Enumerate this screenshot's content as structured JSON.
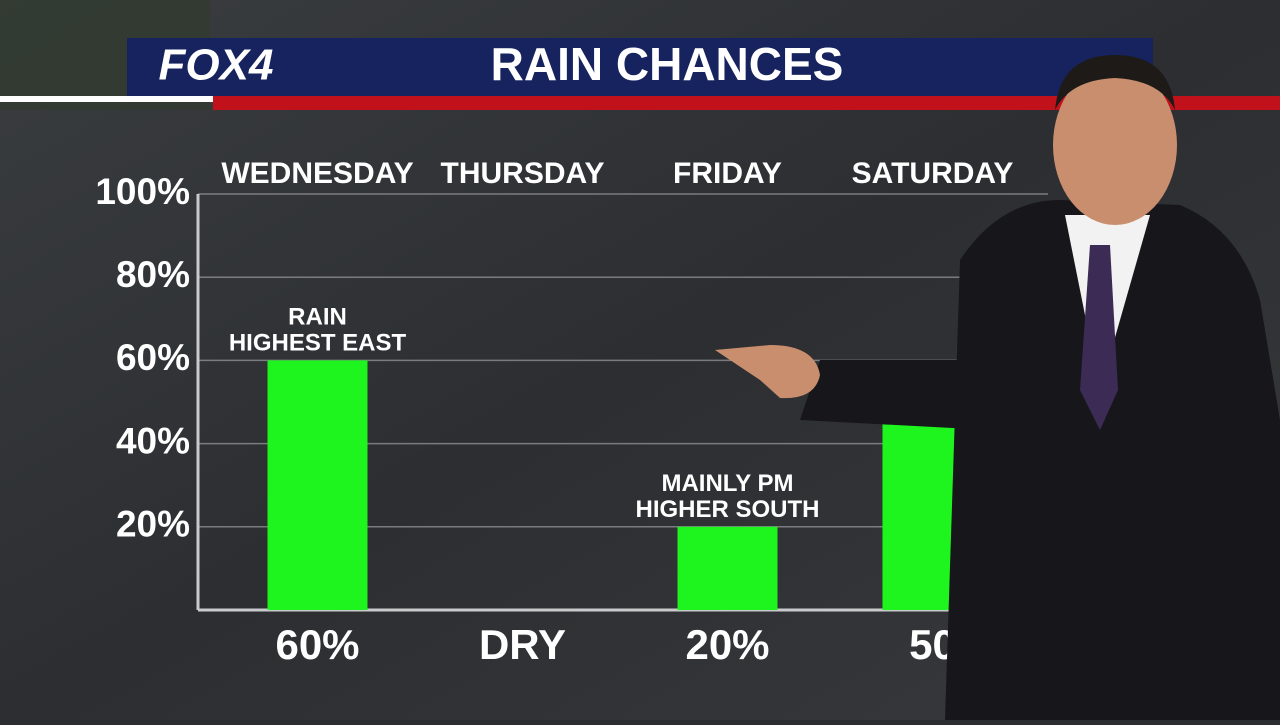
{
  "header": {
    "logo": "FOX4"
  },
  "chart_data": {
    "type": "bar",
    "title": "RAIN CHANCES",
    "categories": [
      "WEDNESDAY",
      "THURSDAY",
      "FRIDAY",
      "SATURDAY"
    ],
    "values": [
      60,
      0,
      20,
      50
    ],
    "value_labels": [
      "60%",
      "DRY",
      "20%",
      "50"
    ],
    "notes": [
      [
        "RAIN",
        "HIGHEST EAST"
      ],
      null,
      [
        "MAINLY PM",
        "HIGHER SOUTH"
      ],
      null
    ],
    "color": "#1ef51e",
    "ylim": [
      0,
      100
    ],
    "yticks": [
      {
        "value": 20,
        "label": "20%"
      },
      {
        "value": 40,
        "label": "40%"
      },
      {
        "value": 60,
        "label": "60%"
      },
      {
        "value": 80,
        "label": "80%"
      },
      {
        "value": 100,
        "label": "100%"
      }
    ],
    "grid": true
  }
}
